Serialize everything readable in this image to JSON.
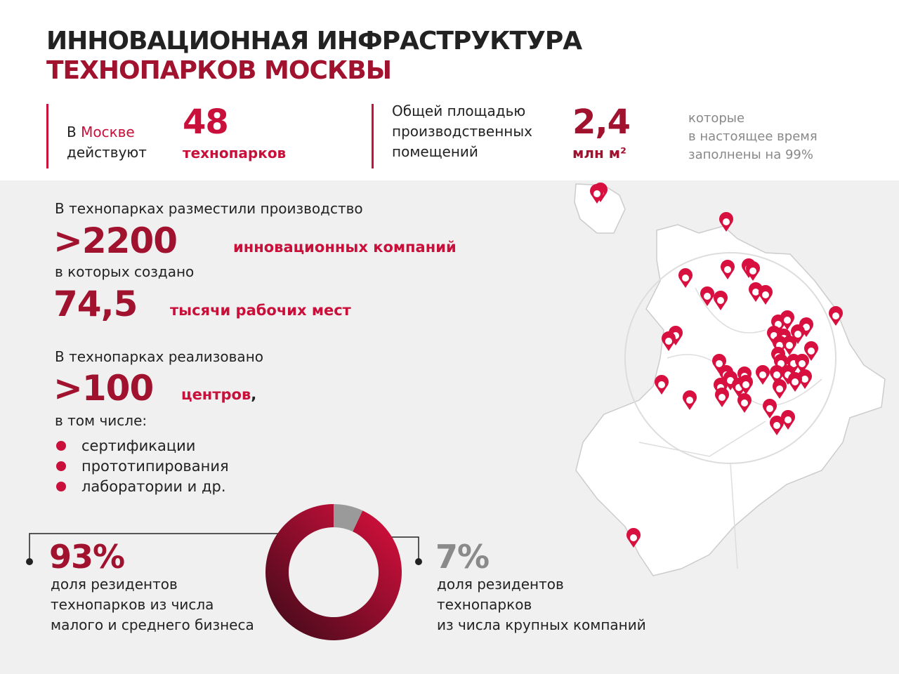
{
  "header": {
    "title_line1": "ИННОВАЦИОННАЯ ИНФРАСТРУКТУРА",
    "title_line2": "ТЕХНОПАРКОВ МОСКВЫ"
  },
  "stats": {
    "parks": {
      "prefix": "В ",
      "highlight": "Москве",
      "suffix": "действуют",
      "number": "48",
      "unit": "технопарков"
    },
    "area": {
      "lines": [
        "Общей площадью",
        "производственных",
        "помещений"
      ],
      "number": "2,4",
      "unit": "млн м²",
      "note": [
        "которые",
        "в настоящее время",
        "заполнены на 99%"
      ]
    }
  },
  "companies": {
    "intro": "В технопарках разместили производство",
    "number": ">2200",
    "unit": "инновационных компаний",
    "created": "в которых создано",
    "jobs_number": "74,5",
    "jobs_unit": "тысячи рабочих мест"
  },
  "centers": {
    "intro": "В технопарках реализовано",
    "number": ">100",
    "unit": "центров",
    "comma": ",",
    "including": "в том числе:",
    "items": [
      "сертификации",
      "прототипирования",
      "лаборатории и др."
    ]
  },
  "chart_data": {
    "type": "donut",
    "series": [
      {
        "name": "доля резидентов технопарков из числа малого и среднего бизнеса",
        "lines": [
          "доля резидентов",
          "технопарков из числа",
          "малого и среднего бизнеса"
        ],
        "color": "#c8103a",
        "values": [
          93
        ],
        "value_labels": [
          "93%"
        ]
      },
      {
        "name": "доля резидентов технопарков из числа крупных компаний",
        "lines": [
          "доля резидентов",
          "технопарков",
          "из числа крупных компаний"
        ],
        "color": "#9a9a9a",
        "values": [
          7
        ],
        "value_labels": [
          "7%"
        ]
      }
    ]
  }
}
